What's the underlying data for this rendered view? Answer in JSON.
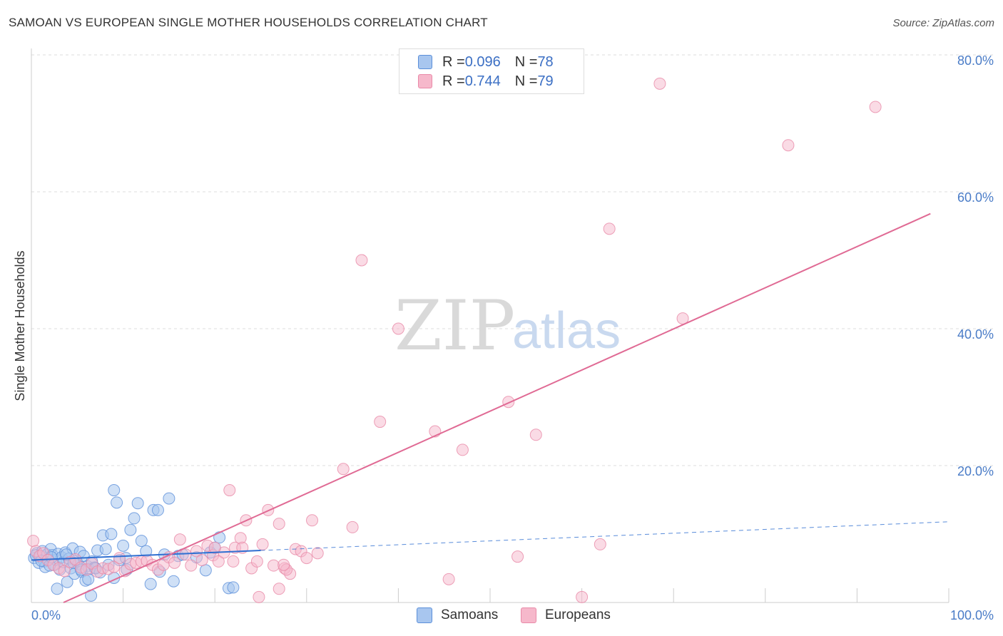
{
  "title": "SAMOAN VS EUROPEAN SINGLE MOTHER HOUSEHOLDS CORRELATION CHART",
  "source": "Source: ZipAtlas.com",
  "watermark": {
    "zip": "ZIP",
    "atlas": "atlas"
  },
  "colors": {
    "samoans_fill": "#a8c6ef",
    "samoans_stroke": "#5b8fd9",
    "samoans_line": "#2f6fd1",
    "europeans_fill": "#f6b8cb",
    "europeans_stroke": "#e98aa8",
    "europeans_line": "#e06a94",
    "grid": "#dddddd",
    "tick_text": "#4a7cc7"
  },
  "legend": {
    "rows": [
      {
        "r_label": "R = ",
        "r_value": "0.096",
        "n_label": "N = ",
        "n_value": "78"
      },
      {
        "r_label": "R = ",
        "r_value": "0.744",
        "n_label": "N = ",
        "n_value": "79"
      }
    ]
  },
  "bottom_legend": {
    "samoans": "Samoans",
    "europeans": "Europeans"
  },
  "chart_data": {
    "type": "scatter",
    "title": "SAMOAN VS EUROPEAN SINGLE MOTHER HOUSEHOLDS CORRELATION CHART",
    "xlabel": "",
    "ylabel": "Single Mother Households",
    "xlim": [
      0,
      100
    ],
    "ylim": [
      0,
      80
    ],
    "x_tick_labels": [
      "0.0%",
      "100.0%"
    ],
    "y_ticks": [
      20,
      40,
      60,
      80
    ],
    "y_tick_labels": [
      "20.0%",
      "40.0%",
      "60.0%",
      "80.0%"
    ],
    "grid": true,
    "series": [
      {
        "name": "Samoans",
        "R": 0.096,
        "N": 78,
        "trend": {
          "x": [
            0,
            25
          ],
          "y": [
            6.2,
            7.6
          ]
        },
        "trend_extension": {
          "x": [
            25,
            100
          ],
          "y": [
            7.6,
            11.8
          ]
        },
        "points": [
          [
            0.3,
            6.5
          ],
          [
            0.6,
            7.2
          ],
          [
            0.8,
            5.8
          ],
          [
            1.0,
            6.8
          ],
          [
            1.2,
            7.5
          ],
          [
            1.4,
            6.0
          ],
          [
            1.5,
            5.2
          ],
          [
            1.7,
            7.0
          ],
          [
            1.9,
            6.3
          ],
          [
            2.1,
            7.8
          ],
          [
            2.3,
            6.9
          ],
          [
            2.5,
            5.5
          ],
          [
            2.7,
            6.2
          ],
          [
            2.9,
            7.1
          ],
          [
            3.1,
            4.8
          ],
          [
            3.3,
            6.6
          ],
          [
            3.5,
            5.9
          ],
          [
            3.7,
            7.3
          ],
          [
            3.9,
            3.0
          ],
          [
            4.1,
            6.4
          ],
          [
            4.3,
            5.0
          ],
          [
            4.5,
            7.9
          ],
          [
            4.7,
            4.2
          ],
          [
            4.9,
            6.1
          ],
          [
            5.1,
            5.6
          ],
          [
            5.3,
            7.4
          ],
          [
            5.5,
            4.5
          ],
          [
            5.7,
            6.8
          ],
          [
            5.9,
            3.2
          ],
          [
            6.1,
            5.3
          ],
          [
            6.3,
            4.9
          ],
          [
            6.6,
            6.0
          ],
          [
            6.9,
            5.1
          ],
          [
            7.2,
            7.6
          ],
          [
            7.5,
            4.4
          ],
          [
            7.8,
            9.8
          ],
          [
            8.1,
            7.8
          ],
          [
            8.4,
            5.5
          ],
          [
            8.7,
            10.0
          ],
          [
            9.0,
            3.6
          ],
          [
            9.3,
            14.6
          ],
          [
            9.6,
            6.2
          ],
          [
            10.0,
            8.3
          ],
          [
            10.4,
            4.8
          ],
          [
            10.8,
            10.6
          ],
          [
            11.2,
            12.3
          ],
          [
            11.6,
            14.5
          ],
          [
            12.0,
            9.0
          ],
          [
            13.0,
            2.7
          ],
          [
            13.3,
            13.5
          ],
          [
            13.8,
            13.5
          ],
          [
            14.0,
            4.5
          ],
          [
            14.5,
            7.0
          ],
          [
            15.0,
            15.2
          ],
          [
            15.5,
            3.1
          ],
          [
            16.0,
            6.8
          ],
          [
            9.0,
            16.4
          ],
          [
            10.3,
            6.5
          ],
          [
            0.5,
            6.9
          ],
          [
            1.1,
            6.1
          ],
          [
            2.0,
            5.4
          ],
          [
            2.8,
            2.0
          ],
          [
            3.8,
            7.0
          ],
          [
            4.6,
            5.8
          ],
          [
            5.4,
            4.8
          ],
          [
            6.2,
            3.4
          ],
          [
            6.5,
            1.0
          ],
          [
            7.0,
            5.0
          ],
          [
            18.0,
            6.6
          ],
          [
            19.0,
            4.7
          ],
          [
            19.5,
            7.3
          ],
          [
            20.0,
            8.0
          ],
          [
            20.5,
            9.5
          ],
          [
            21.5,
            2.1
          ],
          [
            22.0,
            2.2
          ],
          [
            12.5,
            7.5
          ],
          [
            16.5,
            7.0
          ],
          [
            2.2,
            6.6
          ]
        ]
      },
      {
        "name": "Europeans",
        "R": 0.744,
        "N": 79,
        "trend": {
          "x": [
            3.5,
            98
          ],
          "y": [
            0,
            56.8
          ]
        },
        "points": [
          [
            0.2,
            9.0
          ],
          [
            0.5,
            7.5
          ],
          [
            0.9,
            6.8
          ],
          [
            1.3,
            7.2
          ],
          [
            1.8,
            6.2
          ],
          [
            2.4,
            5.5
          ],
          [
            3.0,
            5.0
          ],
          [
            3.6,
            4.6
          ],
          [
            4.2,
            5.9
          ],
          [
            4.8,
            6.3
          ],
          [
            5.4,
            5.1
          ],
          [
            6.0,
            4.8
          ],
          [
            6.6,
            5.7
          ],
          [
            7.2,
            4.5
          ],
          [
            7.8,
            5.0
          ],
          [
            8.4,
            4.9
          ],
          [
            9.0,
            5.2
          ],
          [
            9.6,
            6.5
          ],
          [
            10.2,
            4.6
          ],
          [
            10.8,
            5.6
          ],
          [
            11.4,
            5.8
          ],
          [
            12.0,
            6.0
          ],
          [
            12.6,
            6.1
          ],
          [
            13.2,
            5.5
          ],
          [
            13.8,
            4.8
          ],
          [
            14.4,
            5.5
          ],
          [
            15.0,
            6.6
          ],
          [
            15.6,
            5.8
          ],
          [
            16.2,
            9.2
          ],
          [
            16.8,
            7.0
          ],
          [
            17.4,
            5.4
          ],
          [
            18.0,
            7.5
          ],
          [
            18.6,
            6.2
          ],
          [
            19.2,
            8.3
          ],
          [
            19.8,
            6.9
          ],
          [
            20.4,
            6.0
          ],
          [
            21.0,
            7.3
          ],
          [
            21.6,
            16.4
          ],
          [
            22.2,
            8.0
          ],
          [
            22.8,
            9.4
          ],
          [
            23.4,
            12.0
          ],
          [
            24.0,
            5.0
          ],
          [
            24.6,
            6.0
          ],
          [
            25.2,
            8.5
          ],
          [
            25.8,
            13.5
          ],
          [
            26.4,
            5.4
          ],
          [
            27.0,
            11.5
          ],
          [
            27.6,
            5.0
          ],
          [
            28.2,
            4.2
          ],
          [
            28.8,
            7.8
          ],
          [
            29.4,
            7.5
          ],
          [
            30.0,
            6.5
          ],
          [
            30.6,
            12.0
          ],
          [
            31.2,
            7.2
          ],
          [
            34.0,
            19.5
          ],
          [
            35.0,
            11.0
          ],
          [
            36.0,
            50.0
          ],
          [
            38.0,
            26.4
          ],
          [
            40.0,
            40.0
          ],
          [
            44.0,
            25.0
          ],
          [
            45.5,
            3.4
          ],
          [
            47.0,
            22.3
          ],
          [
            52.0,
            29.3
          ],
          [
            53.0,
            6.7
          ],
          [
            55.0,
            24.5
          ],
          [
            60.0,
            0.8
          ],
          [
            62.0,
            8.5
          ],
          [
            63.0,
            54.6
          ],
          [
            68.5,
            75.8
          ],
          [
            71.0,
            41.5
          ],
          [
            82.5,
            66.8
          ],
          [
            92.0,
            72.4
          ],
          [
            23.0,
            8.0
          ],
          [
            24.8,
            0.8
          ],
          [
            27.0,
            2.0
          ],
          [
            20.0,
            8.0
          ],
          [
            27.8,
            4.8
          ],
          [
            22.0,
            6.0
          ],
          [
            27.5,
            5.5
          ]
        ]
      }
    ]
  }
}
